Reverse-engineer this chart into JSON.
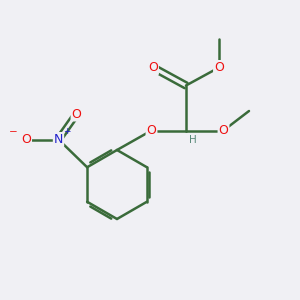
{
  "bg_color": "#f0f0f4",
  "bond_color": "#3a6b3a",
  "bond_width": 1.8,
  "atom_colors": {
    "O": "#ee1111",
    "N": "#2222cc",
    "H": "#5a8a7a",
    "C": "#3a6b3a"
  },
  "figsize": [
    3.0,
    3.0
  ],
  "dpi": 100
}
